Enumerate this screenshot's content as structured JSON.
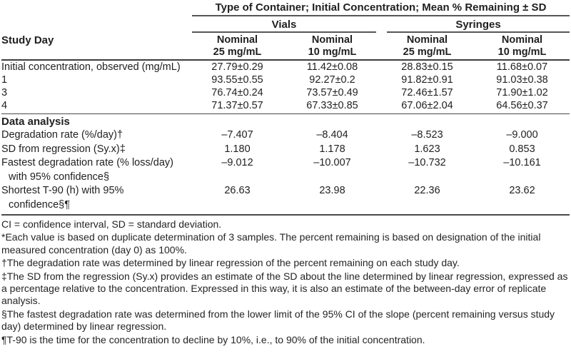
{
  "table": {
    "top_header": "Type of Container; Initial Concentration; Mean % Remaining ± SD",
    "stub_header": "Study Day",
    "groups": [
      {
        "label": "Vials",
        "columns": [
          {
            "line1": "Nominal",
            "line2": "25 mg/mL"
          },
          {
            "line1": "Nominal",
            "line2": "10 mg/mL"
          }
        ]
      },
      {
        "label": "Syringes",
        "columns": [
          {
            "line1": "Nominal",
            "line2": "25 mg/mL"
          },
          {
            "line1": "Nominal",
            "line2": "10 mg/mL"
          }
        ]
      }
    ],
    "rows": [
      {
        "label": "Initial concentration, observed (mg/mL)",
        "values": [
          "27.79±0.29",
          "11.42±0.08",
          "28.83±0.15",
          "11.68±0.07"
        ]
      },
      {
        "label": "1",
        "values": [
          "93.55±0.55",
          "92.27±0.2",
          "91.82±0.91",
          "91.03±0.38"
        ]
      },
      {
        "label": "3",
        "values": [
          "76.74±0.24",
          "73.57±0.49",
          "72.46±1.57",
          "71.90±1.02"
        ]
      },
      {
        "label": "4",
        "values": [
          "71.37±0.57",
          "67.33±0.85",
          "67.06±2.04",
          "64.56±0.37"
        ]
      }
    ],
    "section_header": "Data analysis",
    "analysis_rows": [
      {
        "label": "Degradation rate (%/day)†",
        "label2": "",
        "values": [
          "–7.407",
          "–8.404",
          "–8.523",
          "–9.000"
        ]
      },
      {
        "label": "SD from regression (Sy.x)‡",
        "label2": "",
        "values": [
          "1.180",
          "1.178",
          "1.623",
          "0.853"
        ]
      },
      {
        "label": "Fastest degradation rate (% loss/day)",
        "label2": "with 95% confidence§",
        "values": [
          "–9.012",
          "–10.007",
          "–10.732",
          "–10.161"
        ]
      },
      {
        "label": "Shortest T-90 (h) with 95%",
        "label2": "confidence§¶",
        "values": [
          "26.63",
          "23.98",
          "22.36",
          "23.62"
        ]
      }
    ]
  },
  "footnotes": [
    "CI = confidence interval, SD = standard deviation.",
    "*Each value is based on duplicate determination of 3 samples. The percent remaining is based on designation of the initial measured concentration (day 0) as 100%.",
    "†The degradation rate was determined by linear regression of the percent remaining on each study day.",
    "‡The SD from the regression (Sy.x) provides an estimate of the SD about the line determined by linear regression, expressed as a percentage relative to the concentration. Expressed in this way, it is also an estimate of the between-day error of replicate analysis.",
    "§The fastest degradation rate was determined from the lower limit of the 95% CI of the slope (percent remaining versus study day) determined by linear regression.",
    "¶T-90 is the time for the concentration to decline by 10%, i.e., to 90% of the initial concentration."
  ],
  "colors": {
    "text": "#1f1f1f",
    "rule": "#4a4a4a",
    "background": "#ffffff"
  }
}
